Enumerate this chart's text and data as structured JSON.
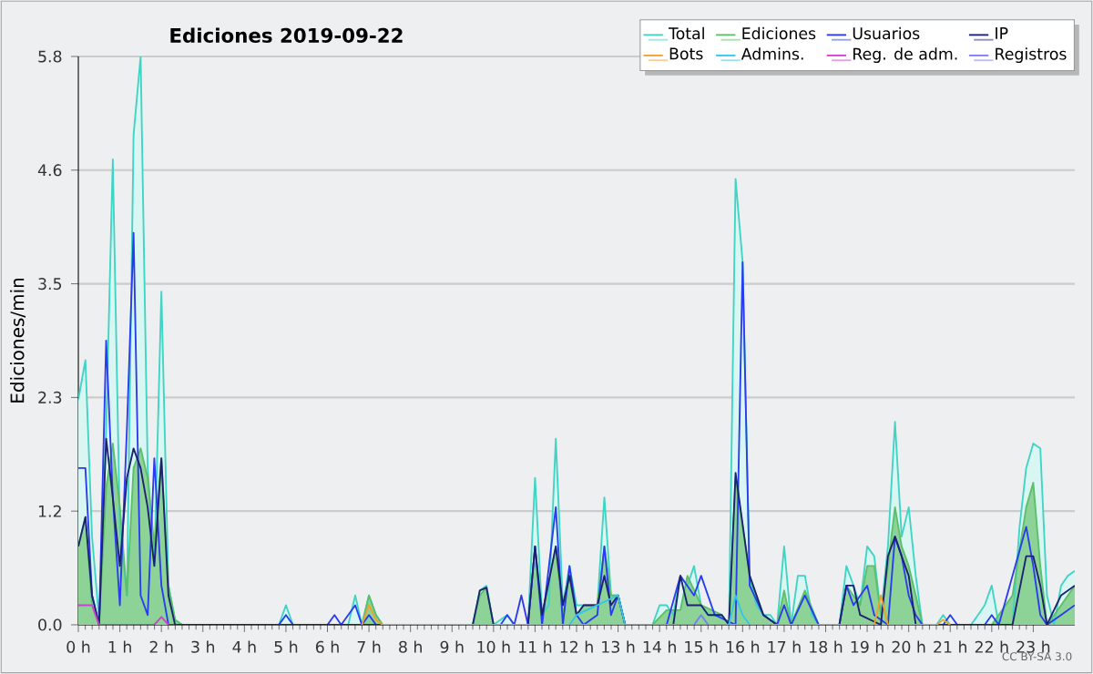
{
  "chart_data": {
    "type": "line",
    "title": "Ediciones  2019-09-22",
    "ylabel": "Ediciones/min",
    "xlim": [
      0,
      24
    ],
    "xticks": [
      {
        "value": 0,
        "label": "0 h"
      },
      {
        "value": 1,
        "label": "1 h"
      },
      {
        "value": 2,
        "label": "2 h"
      },
      {
        "value": 3,
        "label": "3 h"
      },
      {
        "value": 4,
        "label": "4 h"
      },
      {
        "value": 5,
        "label": "5 h"
      },
      {
        "value": 6,
        "label": "6 h"
      },
      {
        "value": 7,
        "label": "7 h"
      },
      {
        "value": 8,
        "label": "8 h"
      },
      {
        "value": 9,
        "label": "9 h"
      },
      {
        "value": 10,
        "label": "10 h"
      },
      {
        "value": 11,
        "label": "11 h"
      },
      {
        "value": 12,
        "label": "12 h"
      },
      {
        "value": 13,
        "label": "13 h"
      },
      {
        "value": 14,
        "label": "14 h"
      },
      {
        "value": 15,
        "label": "15 h"
      },
      {
        "value": 16,
        "label": "16 h"
      },
      {
        "value": 17,
        "label": "17 h"
      },
      {
        "value": 18,
        "label": "18 h"
      },
      {
        "value": 19,
        "label": "19 h"
      },
      {
        "value": 20,
        "label": "20 h"
      },
      {
        "value": 21,
        "label": "21 h"
      },
      {
        "value": 22,
        "label": "22 h"
      },
      {
        "value": 23,
        "label": "23 h"
      }
    ],
    "ylim": [
      0,
      5.8
    ],
    "yticks": [
      {
        "value": 0,
        "label": "0.0"
      },
      {
        "value": 1.16,
        "label": "1.2"
      },
      {
        "value": 2.32,
        "label": "2.3"
      },
      {
        "value": 3.48,
        "label": "3.5"
      },
      {
        "value": 4.64,
        "label": "4.6"
      },
      {
        "value": 5.8,
        "label": "5.8"
      }
    ],
    "grid": "y",
    "legend": "top right",
    "marker": "none",
    "line_style": "solid",
    "annotations": [
      "CC BY-SA 3.0"
    ],
    "series": [
      {
        "name": "Total",
        "type": "area",
        "color": "#3fd4c4",
        "x": [
          0,
          0.17,
          0.33,
          0.5,
          0.67,
          0.83,
          1.0,
          1.17,
          1.33,
          1.5,
          1.67,
          1.83,
          2.0,
          2.17,
          2.33,
          2.5,
          4.83,
          5.0,
          5.17,
          6.5,
          6.67,
          6.83,
          7.0,
          7.17,
          7.33,
          9.5,
          9.67,
          9.83,
          10.0,
          10.33,
          10.5,
          10.83,
          11.0,
          11.17,
          11.33,
          11.5,
          11.67,
          11.83,
          12.0,
          12.17,
          12.5,
          12.67,
          12.83,
          13.0,
          13.17,
          13.83,
          14.0,
          14.17,
          14.33,
          14.5,
          14.67,
          14.83,
          15.0,
          15.17,
          15.33,
          15.5,
          15.67,
          15.83,
          16.0,
          16.17,
          16.33,
          16.5,
          16.67,
          16.83,
          17.0,
          17.17,
          17.33,
          17.5,
          17.67,
          17.83,
          18.33,
          18.5,
          18.67,
          18.83,
          19.0,
          19.17,
          19.33,
          19.5,
          19.67,
          19.83,
          20.0,
          20.17,
          20.33,
          20.67,
          20.83,
          21.0,
          21.5,
          21.67,
          21.83,
          22.0,
          22.17,
          22.5,
          22.67,
          22.83,
          23.0,
          23.17,
          23.33,
          23.5,
          23.67,
          23.83,
          24.0
        ],
        "values": [
          2.3,
          2.7,
          0.9,
          0.05,
          2.0,
          4.75,
          1.0,
          0.3,
          5.0,
          5.8,
          1.6,
          0.6,
          3.4,
          0.4,
          0.05,
          0,
          0,
          0.2,
          0,
          0,
          0.3,
          0,
          0.3,
          0.1,
          0,
          0,
          0.35,
          0.4,
          0,
          0.1,
          0,
          0,
          1.5,
          0.1,
          0.2,
          1.9,
          0.2,
          0.6,
          0.2,
          0.2,
          0.2,
          1.3,
          0.3,
          0.3,
          0,
          0,
          0.2,
          0.2,
          0.1,
          0.5,
          0.4,
          0.6,
          0.2,
          0.1,
          0.1,
          0.1,
          0,
          4.55,
          3.7,
          0.5,
          0.2,
          0.1,
          0.1,
          0,
          0.8,
          0,
          0.5,
          0.5,
          0.1,
          0,
          0,
          0.6,
          0.4,
          0.2,
          0.8,
          0.7,
          0.1,
          0.8,
          2.07,
          0.9,
          1.2,
          0.5,
          0,
          0,
          0.1,
          0,
          0,
          0.1,
          0.2,
          0.4,
          0,
          0,
          1.0,
          1.6,
          1.85,
          1.8,
          0.3,
          0,
          0.4,
          0.5,
          0.55
        ]
      },
      {
        "name": "Ediciones",
        "type": "area",
        "color": "#5cbf6a",
        "x": [
          0,
          0.17,
          0.33,
          0.5,
          0.67,
          0.83,
          1.0,
          1.17,
          1.33,
          1.5,
          1.67,
          1.83,
          2.0,
          2.17,
          2.33,
          2.5,
          6.83,
          7.0,
          7.17,
          7.33,
          9.5,
          9.67,
          9.83,
          10.0,
          10.83,
          11.0,
          11.17,
          11.5,
          11.67,
          11.83,
          12.0,
          12.17,
          12.5,
          12.67,
          12.83,
          13.0,
          13.17,
          13.83,
          14.17,
          14.5,
          14.67,
          15.0,
          15.5,
          15.67,
          15.83,
          16.17,
          16.5,
          16.83,
          17.0,
          17.17,
          17.5,
          17.83,
          18.33,
          18.5,
          18.83,
          19.0,
          19.17,
          19.33,
          19.5,
          19.67,
          19.83,
          20.0,
          20.17,
          20.33,
          22.0,
          22.5,
          22.83,
          23.0,
          23.17,
          23.33,
          23.67,
          24.0
        ],
        "values": [
          0.8,
          1.1,
          0.2,
          0,
          1.4,
          1.85,
          1.2,
          0.3,
          1.6,
          1.8,
          1.5,
          0.8,
          1.7,
          0.4,
          0.05,
          0,
          0,
          0.3,
          0.1,
          0,
          0,
          0.3,
          0.38,
          0,
          0,
          0.8,
          0.1,
          0.8,
          0.1,
          0.5,
          0.1,
          0.2,
          0.2,
          0.8,
          0.3,
          0.3,
          0,
          0,
          0.15,
          0.15,
          0.5,
          0.2,
          0.1,
          0,
          1.5,
          0.5,
          0.1,
          0,
          0.35,
          0,
          0.35,
          0,
          0,
          0.4,
          0.2,
          0.6,
          0.6,
          0.1,
          0.6,
          1.2,
          0.8,
          0.6,
          0.3,
          0,
          0,
          0.3,
          1.2,
          1.45,
          0.6,
          0,
          0.2,
          0.4
        ]
      },
      {
        "name": "Usuarios",
        "color": "#2a3cf0",
        "x": [
          0,
          0.17,
          0.33,
          0.5,
          0.67,
          0.83,
          1.0,
          1.17,
          1.33,
          1.5,
          1.67,
          1.83,
          2.0,
          2.17,
          4.83,
          5.0,
          5.17,
          6.0,
          6.17,
          6.33,
          6.5,
          6.67,
          6.83,
          7.0,
          7.17,
          10.17,
          10.33,
          10.5,
          10.67,
          10.83,
          11.0,
          11.17,
          11.5,
          11.67,
          11.83,
          12.0,
          12.17,
          12.5,
          12.67,
          12.83,
          13.0,
          13.17,
          14.17,
          14.5,
          14.83,
          15.0,
          15.33,
          15.83,
          16.0,
          16.17,
          16.5,
          16.83,
          17.0,
          17.17,
          17.5,
          17.83,
          18.33,
          18.5,
          18.67,
          19.0,
          19.17,
          19.5,
          19.67,
          19.83,
          20.0,
          20.17,
          20.33,
          20.83,
          21.0,
          21.17,
          21.83,
          22.0,
          22.17,
          22.5,
          22.83,
          23.0,
          23.17,
          23.33,
          23.67,
          24.0
        ],
        "values": [
          1.6,
          1.6,
          0.3,
          0,
          2.9,
          1.3,
          0.2,
          2.0,
          4.0,
          0.3,
          0.1,
          1.7,
          0.4,
          0,
          0,
          0.1,
          0,
          0,
          0.1,
          0,
          0.1,
          0.2,
          0,
          0.1,
          0,
          0,
          0.1,
          0,
          0.3,
          0,
          0.8,
          0,
          1.2,
          0,
          0.6,
          0.1,
          0,
          0.1,
          0.8,
          0.1,
          0.3,
          0,
          0,
          0.5,
          0.3,
          0.5,
          0.1,
          0,
          3.7,
          0.4,
          0.1,
          0,
          0.2,
          0,
          0.3,
          0,
          0,
          0.4,
          0.2,
          0.4,
          0.1,
          0,
          0.9,
          0.7,
          0.3,
          0.1,
          0,
          0,
          0.1,
          0,
          0,
          0.1,
          0,
          0.5,
          1.0,
          0.6,
          0.1,
          0,
          0.1,
          0.2
        ]
      },
      {
        "name": "IP",
        "color": "#1c2270",
        "x": [
          0,
          0.17,
          0.33,
          0.5,
          0.67,
          0.83,
          1.0,
          1.17,
          1.33,
          1.5,
          1.67,
          1.83,
          2.0,
          2.17,
          2.33,
          9.5,
          9.67,
          9.83,
          10.0,
          10.83,
          11.0,
          11.17,
          11.5,
          11.67,
          11.83,
          12.0,
          12.17,
          12.5,
          12.67,
          12.83,
          13.0,
          13.17,
          14.33,
          14.5,
          14.67,
          15.0,
          15.17,
          15.5,
          15.67,
          15.83,
          16.17,
          16.5,
          16.83,
          18.33,
          18.5,
          18.67,
          18.83,
          19.33,
          19.5,
          19.67,
          19.83,
          20.0,
          20.17,
          22.5,
          22.83,
          23.0,
          23.17,
          23.33,
          23.67,
          24.0
        ],
        "values": [
          0.8,
          1.1,
          0.3,
          0,
          1.9,
          1.3,
          0.6,
          1.5,
          1.8,
          1.6,
          1.2,
          0.6,
          1.7,
          0.3,
          0,
          0,
          0.35,
          0.38,
          0,
          0,
          0.8,
          0.1,
          0.8,
          0.2,
          0.5,
          0.1,
          0.2,
          0.2,
          0.5,
          0.2,
          0.3,
          0,
          0,
          0.5,
          0.2,
          0.2,
          0.1,
          0.1,
          0,
          1.55,
          0.5,
          0.1,
          0,
          0,
          0.4,
          0.4,
          0.1,
          0,
          0.7,
          0.9,
          0.7,
          0.5,
          0,
          0,
          0.7,
          0.7,
          0.4,
          0,
          0.3,
          0.4
        ]
      },
      {
        "name": "Bots",
        "type": "line",
        "color": "#f0a030",
        "x": [
          6.83,
          7.0,
          7.17,
          7.33,
          7.34,
          19.17,
          19.33,
          19.5,
          19.51,
          20.67,
          20.83,
          21.0
        ],
        "values": [
          0,
          0.2,
          0.05,
          0,
          null,
          0,
          0.3,
          0,
          null,
          0,
          0.05,
          0
        ]
      },
      {
        "name": "Admins.",
        "type": "line",
        "color": "#35c6e6",
        "x": [
          11.83,
          12.0,
          12.5,
          13.0,
          13.17,
          13.18,
          15.67,
          15.83,
          16.0,
          16.17
        ],
        "values": [
          0,
          0.1,
          0.2,
          0.3,
          0,
          null,
          0,
          0.3,
          0.1,
          0
        ]
      },
      {
        "name": "Reg. de adm.",
        "type": "line",
        "color": "#d040d0",
        "x": [
          0,
          0.33,
          0.5,
          0.51,
          1.83,
          2.0,
          2.17
        ],
        "values": [
          0.2,
          0.2,
          0,
          null,
          0,
          0.08,
          0
        ]
      },
      {
        "name": "Registros",
        "type": "line",
        "color": "#7c7cf0",
        "x": [
          14.83,
          15.0,
          15.17
        ],
        "values": [
          0,
          0.1,
          0
        ]
      }
    ]
  }
}
